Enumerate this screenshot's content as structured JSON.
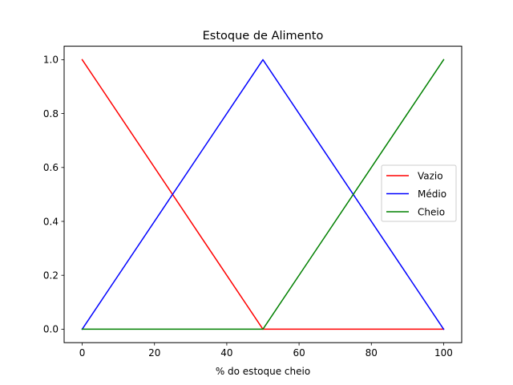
{
  "chart_data": {
    "type": "line",
    "title": "Estoque de Alimento",
    "xlabel": "% do estoque cheio",
    "ylabel": "",
    "xlim": [
      -5,
      105
    ],
    "ylim": [
      -0.05,
      1.05
    ],
    "xticks": [
      0,
      20,
      40,
      60,
      80,
      100
    ],
    "yticks": [
      0.0,
      0.2,
      0.4,
      0.6,
      0.8,
      1.0
    ],
    "xtick_labels": [
      "0",
      "20",
      "40",
      "60",
      "80",
      "100"
    ],
    "ytick_labels": [
      "0.0",
      "0.2",
      "0.4",
      "0.6",
      "0.8",
      "1.0"
    ],
    "grid": false,
    "legend_position": "center-right",
    "series": [
      {
        "name": "Vazio",
        "color": "#ff0000",
        "x": [
          0,
          50,
          100
        ],
        "y": [
          1.0,
          0.0,
          0.0
        ]
      },
      {
        "name": "Médio",
        "color": "#0000ff",
        "x": [
          0,
          50,
          100
        ],
        "y": [
          0.0,
          1.0,
          0.0
        ]
      },
      {
        "name": "Cheio",
        "color": "#008000",
        "x": [
          0,
          50,
          100
        ],
        "y": [
          0.0,
          0.0,
          1.0
        ]
      }
    ]
  }
}
